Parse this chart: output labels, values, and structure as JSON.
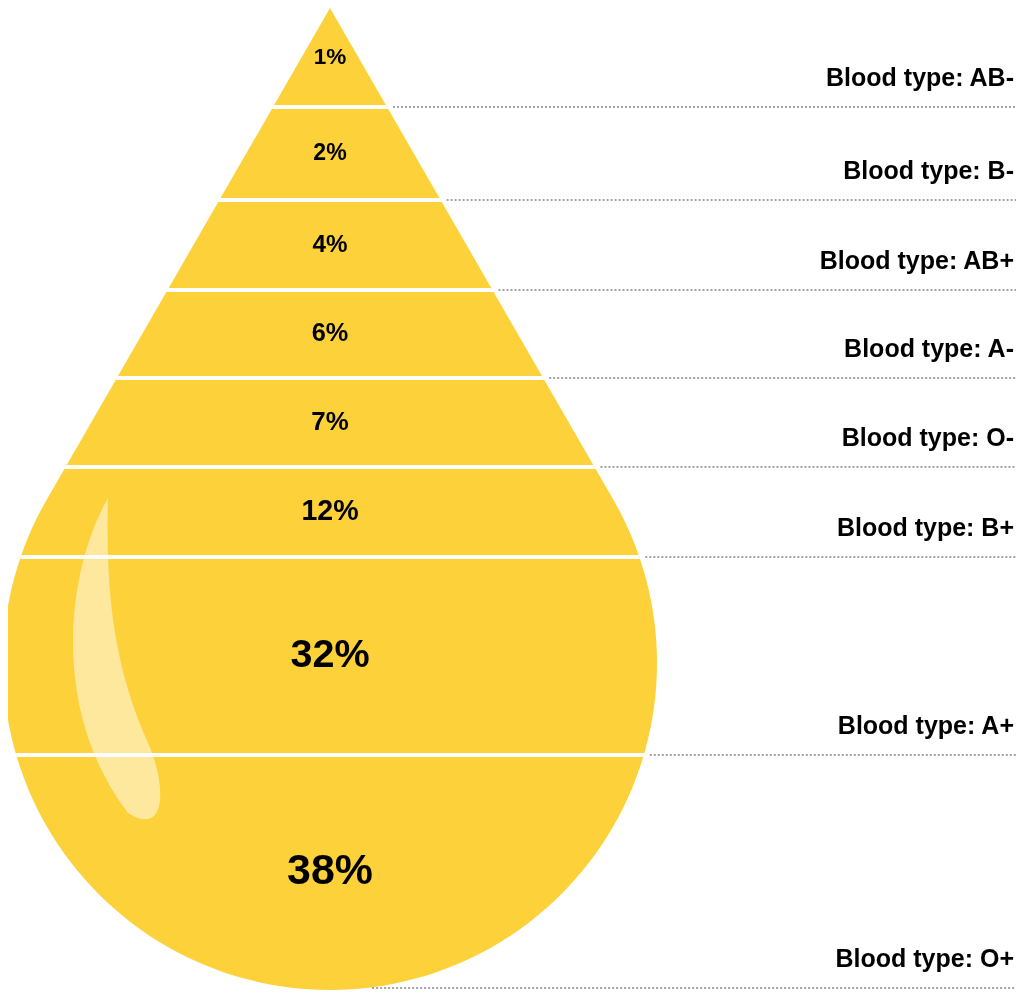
{
  "chart_data": {
    "type": "other",
    "categories": [
      "Blood type: AB-",
      "Blood type: B-",
      "Blood type: AB+",
      "Blood type: A-",
      "Blood type: O-",
      "Blood type: B+",
      "Blood type: A+",
      "Blood type: O+"
    ],
    "values": [
      1,
      2,
      4,
      6,
      7,
      12,
      32,
      38
    ],
    "value_labels": [
      "1%",
      "2%",
      "4%",
      "6%",
      "7%",
      "12%",
      "32%",
      "38%"
    ],
    "color": "#fcd13a"
  }
}
